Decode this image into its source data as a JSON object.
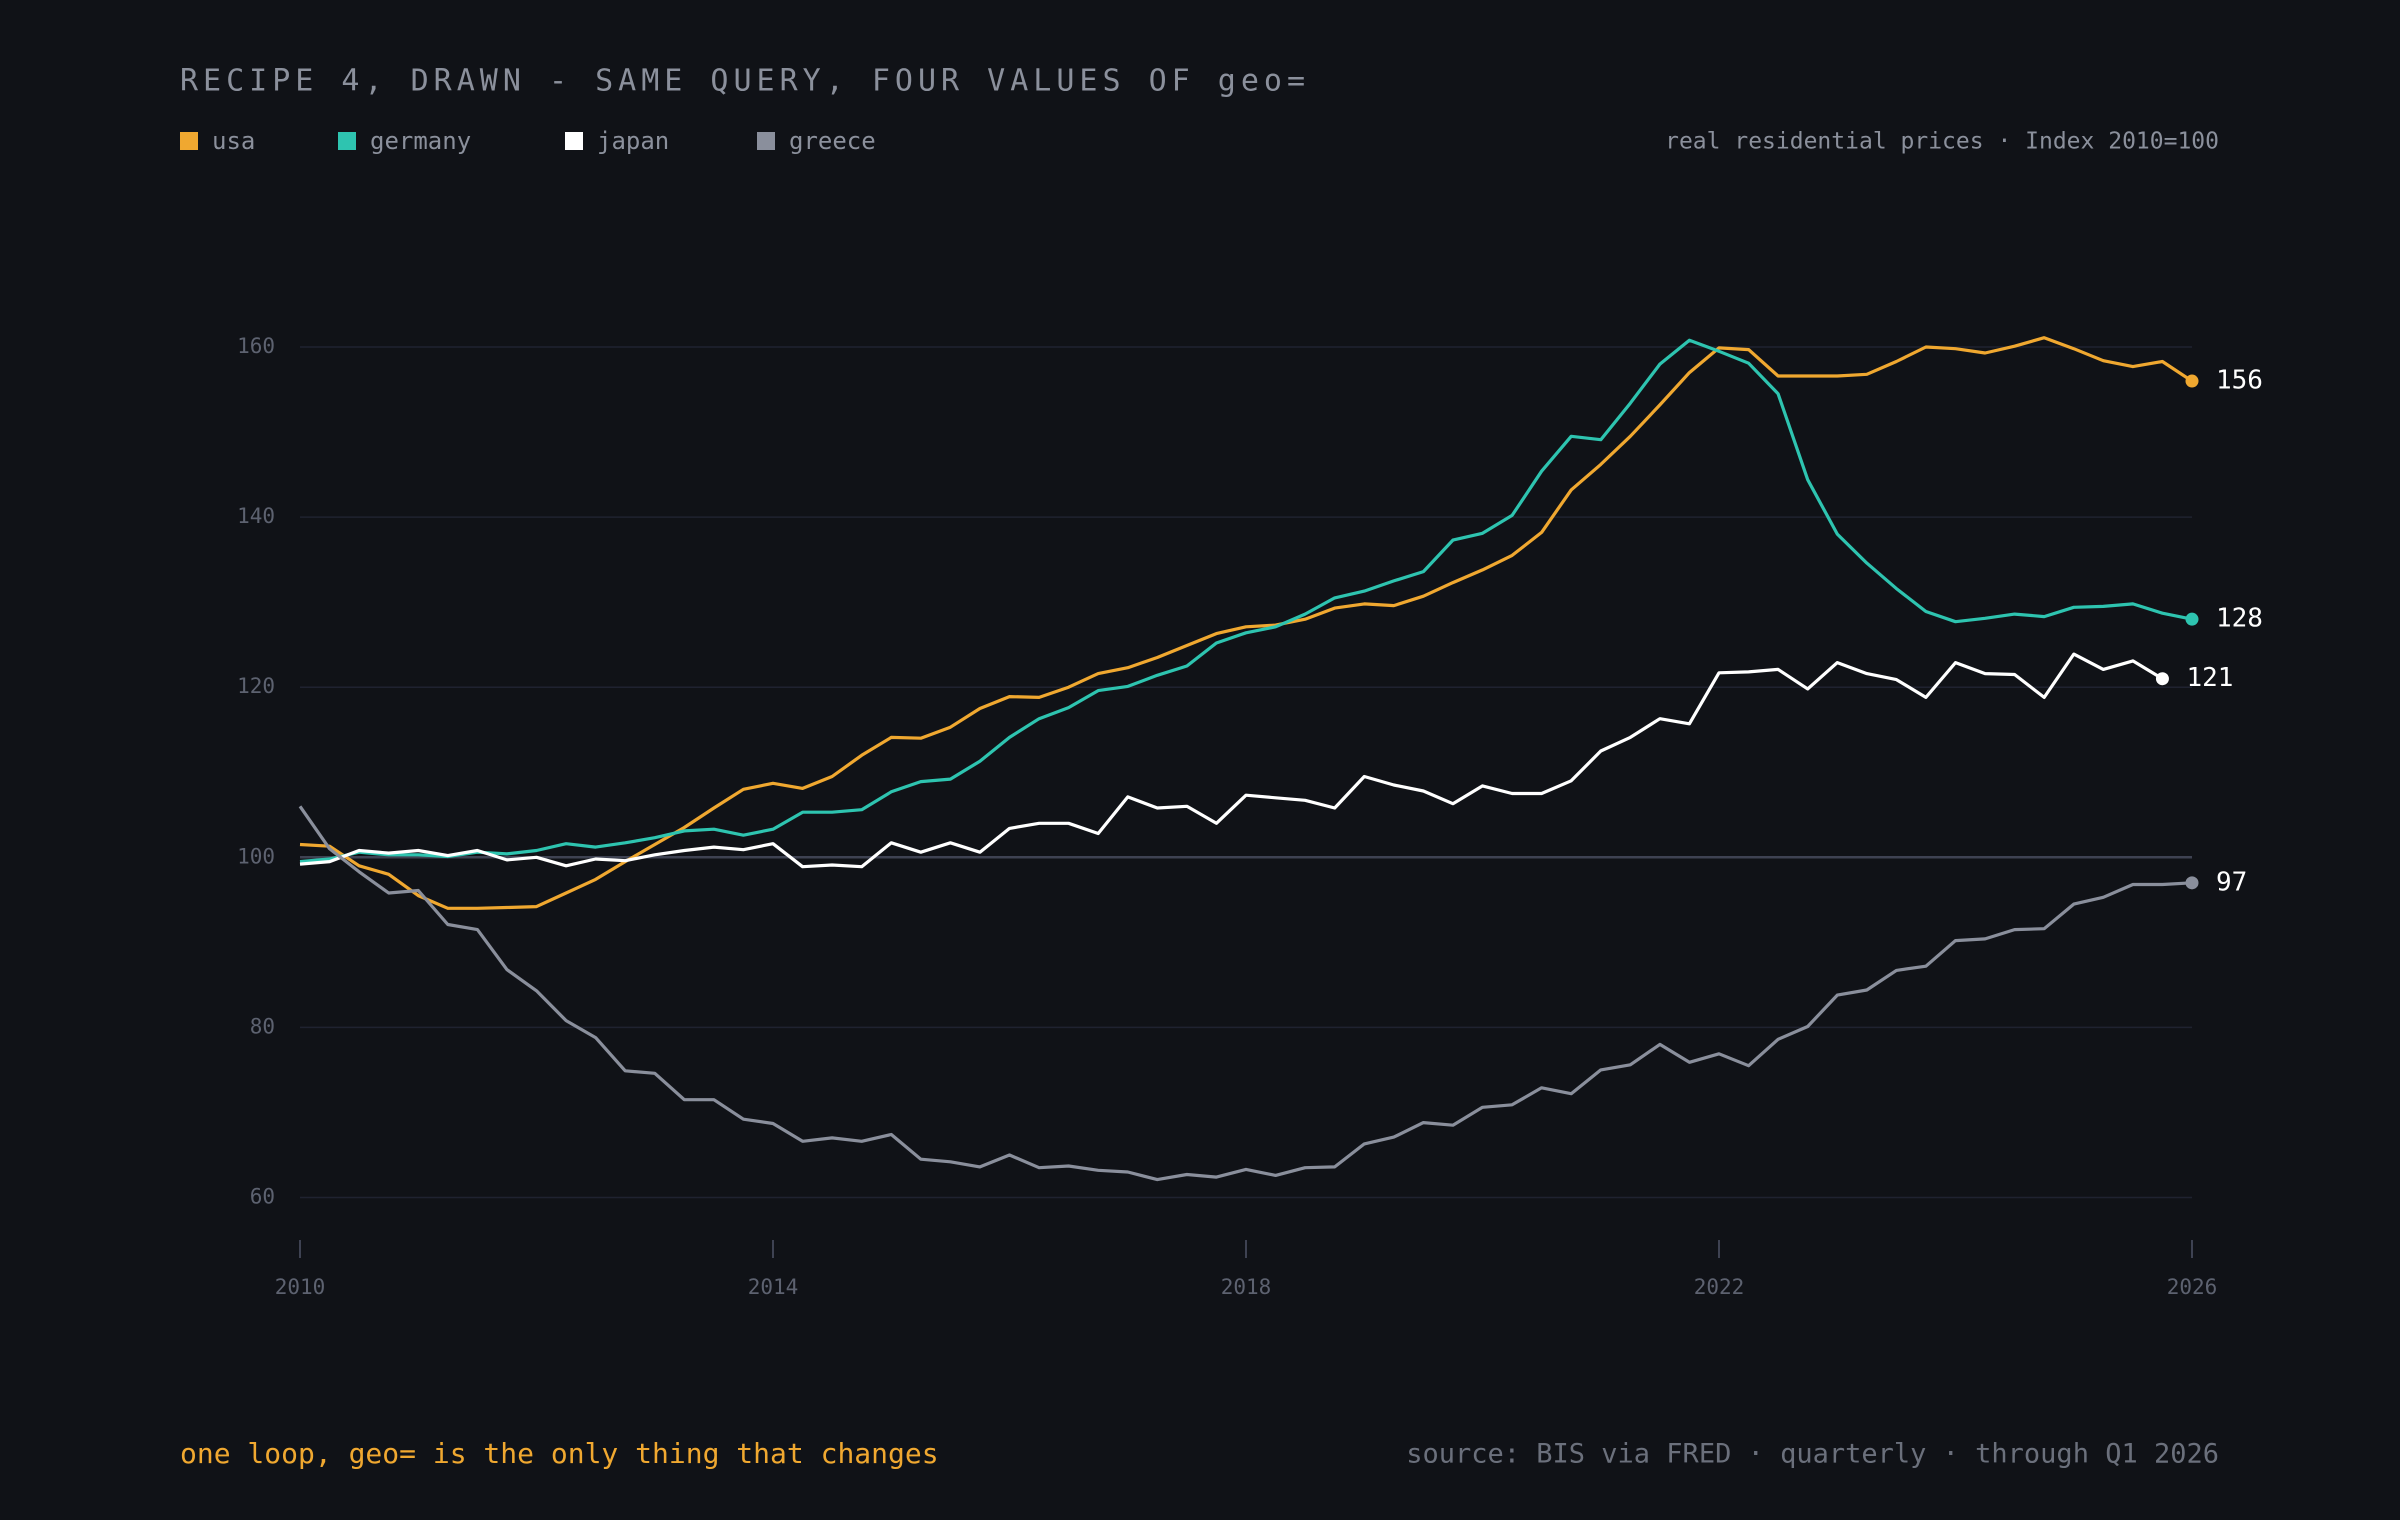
{
  "chart_data": {
    "type": "line",
    "title": "RECIPE 4, DRAWN - SAME QUERY, FOUR VALUES OF geo=",
    "subtitle": "real residential prices · Index 2010=100",
    "annotation": "one loop, geo= is the only thing that changes",
    "source": "source: BIS via FRED · quarterly · through Q1 2026",
    "x": [
      2010,
      2010.25,
      2010.5,
      2010.75,
      2011,
      2011.25,
      2011.5,
      2011.75,
      2012,
      2012.25,
      2012.5,
      2012.75,
      2013,
      2013.25,
      2013.5,
      2013.75,
      2014,
      2014.25,
      2014.5,
      2014.75,
      2015,
      2015.25,
      2015.5,
      2015.75,
      2016,
      2016.25,
      2016.5,
      2016.75,
      2017,
      2017.25,
      2017.5,
      2017.75,
      2018,
      2018.25,
      2018.5,
      2018.75,
      2019,
      2019.25,
      2019.5,
      2019.75,
      2020,
      2020.25,
      2020.5,
      2020.75,
      2021,
      2021.25,
      2021.5,
      2021.75,
      2022,
      2022.25,
      2022.5,
      2022.75,
      2023,
      2023.25,
      2023.5,
      2023.75,
      2024,
      2024.25,
      2024.5,
      2024.75,
      2025,
      2025.25,
      2025.5,
      2025.75,
      2026
    ],
    "series": [
      {
        "name": "usa",
        "color": "#f0a830",
        "values": [
          101.5,
          101.3,
          99,
          98,
          95.5,
          94,
          94,
          94.1,
          94.2,
          95.8,
          97.4,
          99.5,
          101.5,
          103.5,
          105.8,
          108,
          108.7,
          108.1,
          109.5,
          112,
          114.1,
          114,
          115.3,
          117.5,
          118.9,
          118.8,
          120,
          121.6,
          122.3,
          123.5,
          124.9,
          126.3,
          127.1,
          127.3,
          128,
          129.3,
          129.8,
          129.6,
          130.7,
          132.3,
          133.8,
          135.5,
          138.2,
          143.2,
          146.2,
          149.5,
          153.2,
          157,
          159.9,
          159.7,
          156.6,
          156.6,
          156.6,
          156.8,
          158.3,
          160,
          159.8,
          159.3,
          160.1,
          161.1,
          159.8,
          158.4,
          157.7,
          158.3,
          156
        ]
      },
      {
        "name": "germany",
        "color": "#2ec4b0",
        "values": [
          99.5,
          99.8,
          100.6,
          100.3,
          100.3,
          100.1,
          100.6,
          100.4,
          100.8,
          101.6,
          101.2,
          101.7,
          102.3,
          103.1,
          103.3,
          102.6,
          103.3,
          105.3,
          105.3,
          105.6,
          107.7,
          108.9,
          109.2,
          111.3,
          114.1,
          116.3,
          117.6,
          119.6,
          120.1,
          121.4,
          122.5,
          125.2,
          126.4,
          127.1,
          128.6,
          130.5,
          131.3,
          132.5,
          133.6,
          137.3,
          138.1,
          140.2,
          145.4,
          149.5,
          149.1,
          153.4,
          158,
          160.8,
          159.5,
          158.1,
          154.5,
          144.4,
          138,
          134.6,
          131.6,
          128.9,
          127.7,
          128.1,
          128.6,
          128.3,
          129.4,
          129.5,
          129.8,
          128.7,
          128
        ]
      },
      {
        "name": "japan",
        "color": "#ffffff",
        "values": [
          99.2,
          99.5,
          100.8,
          100.5,
          100.8,
          100.2,
          100.8,
          99.7,
          100,
          99,
          99.8,
          99.6,
          100.3,
          100.8,
          101.2,
          100.9,
          101.6,
          98.9,
          99.1,
          98.9,
          101.7,
          100.6,
          101.7,
          100.6,
          103.4,
          104,
          104,
          102.8,
          107.1,
          105.8,
          106,
          104,
          107.3,
          107,
          106.7,
          105.8,
          109.5,
          108.5,
          107.8,
          106.3,
          108.4,
          107.5,
          107.5,
          109,
          112.5,
          114.1,
          116.3,
          115.7,
          121.7,
          121.8,
          122.1,
          119.8,
          122.9,
          121.6,
          120.9,
          118.8,
          122.9,
          121.6,
          121.5,
          118.8,
          123.9,
          122.1,
          123.1,
          121,
          null
        ]
      },
      {
        "name": "greece",
        "color": "#8a8f9c",
        "values": [
          106,
          101,
          98.3,
          95.8,
          96.1,
          92.1,
          91.5,
          86.8,
          84.3,
          80.8,
          78.8,
          74.9,
          74.6,
          71.5,
          71.5,
          69.2,
          68.7,
          66.6,
          67,
          66.6,
          67.4,
          64.5,
          64.2,
          63.6,
          65,
          63.5,
          63.7,
          63.2,
          63,
          62.1,
          62.7,
          62.4,
          63.3,
          62.6,
          63.5,
          63.6,
          66.3,
          67.1,
          68.8,
          68.5,
          70.6,
          70.9,
          72.9,
          72.2,
          75,
          75.6,
          78,
          75.9,
          76.9,
          75.5,
          78.6,
          80.1,
          83.8,
          84.4,
          86.7,
          87.2,
          90.2,
          90.4,
          91.5,
          91.6,
          94.5,
          95.3,
          96.8,
          96.8,
          97
        ]
      }
    ],
    "xlim": [
      2010,
      2026
    ],
    "xticks": [
      2010,
      2014,
      2018,
      2022,
      2026
    ],
    "ylim": [
      55,
      170
    ],
    "yticks": [
      60,
      80,
      100,
      120,
      140,
      160
    ],
    "baseline": 100,
    "grid": true
  }
}
